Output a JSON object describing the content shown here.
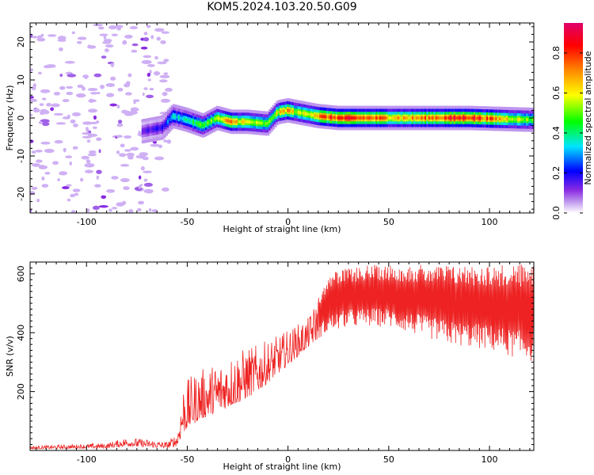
{
  "title": "KOM5.2024.103.20.50.G09",
  "colors": {
    "snr_line": "#ee2222",
    "axis": "#000000",
    "colormap": [
      "#ffffff",
      "#c8a8f0",
      "#8a2be2",
      "#0000ff",
      "#00e5ff",
      "#00ff00",
      "#ffff00",
      "#ff8800",
      "#ff0000",
      "#e0006a"
    ]
  },
  "chart_data": [
    {
      "type": "heatmap",
      "title": "",
      "xlabel": "Height of straight line (km)",
      "ylabel": "Frequency (Hz)",
      "xlim": [
        -128,
        122
      ],
      "ylim": [
        -25,
        25
      ],
      "xticks": [
        -100,
        -50,
        0,
        50,
        100
      ],
      "yticks": [
        -20,
        -10,
        0,
        10,
        20
      ],
      "colorbar": {
        "label": "Normalized spectral amplitude",
        "range": [
          0,
          0.95
        ],
        "ticks": [
          0.0,
          0.2,
          0.4,
          0.6,
          0.8
        ]
      },
      "ridge": {
        "description_points": [
          [
            -72,
            -3.5
          ],
          [
            -62,
            -2.5
          ],
          [
            -57,
            0.5
          ],
          [
            -50,
            -0.5
          ],
          [
            -42,
            -2
          ],
          [
            -35,
            0
          ],
          [
            -28,
            -1
          ],
          [
            -20,
            -1
          ],
          [
            -10,
            -1.5
          ],
          [
            -5,
            1.5
          ],
          [
            0,
            2
          ],
          [
            5,
            1.5
          ],
          [
            15,
            0.5
          ],
          [
            25,
            0
          ],
          [
            60,
            0
          ],
          [
            90,
            0
          ],
          [
            122,
            -0.5
          ]
        ],
        "amplitude": [
          0.15,
          0.2,
          0.35,
          0.4,
          0.5,
          0.55,
          0.75,
          0.6,
          0.5,
          0.6,
          0.75,
          0.55,
          0.75,
          0.85,
          0.7,
          0.9,
          0.5
        ]
      },
      "noise_region": [
        -128,
        -58
      ]
    },
    {
      "type": "line",
      "title": "",
      "xlabel": "Height of straight line (km)",
      "ylabel": "SNR (v/v)",
      "xlim": [
        -128,
        122
      ],
      "ylim": [
        0,
        640
      ],
      "xticks": [
        -100,
        -50,
        0,
        50,
        100
      ],
      "yticks": [
        200,
        400,
        600
      ],
      "series": [
        {
          "envelope": {
            "x": [
              -128,
              -90,
              -80,
              -60,
              -55,
              -52,
              -45,
              -35,
              -25,
              -15,
              -5,
              0,
              10,
              15,
              20,
              30,
              40,
              50,
              60,
              70,
              80,
              90,
              100,
              110,
              122
            ],
            "low": [
              5,
              8,
              15,
              8,
              15,
              60,
              100,
              130,
              160,
              200,
              260,
              290,
              350,
              380,
              400,
              420,
              420,
              420,
              400,
              380,
              360,
              350,
              340,
              320,
              300
            ],
            "high": [
              15,
              25,
              45,
              30,
              60,
              230,
              270,
              300,
              340,
              360,
              390,
              410,
              450,
              520,
              600,
              620,
              630,
              630,
              630,
              630,
              630,
              630,
              630,
              630,
              640
            ]
          }
        }
      ]
    }
  ]
}
